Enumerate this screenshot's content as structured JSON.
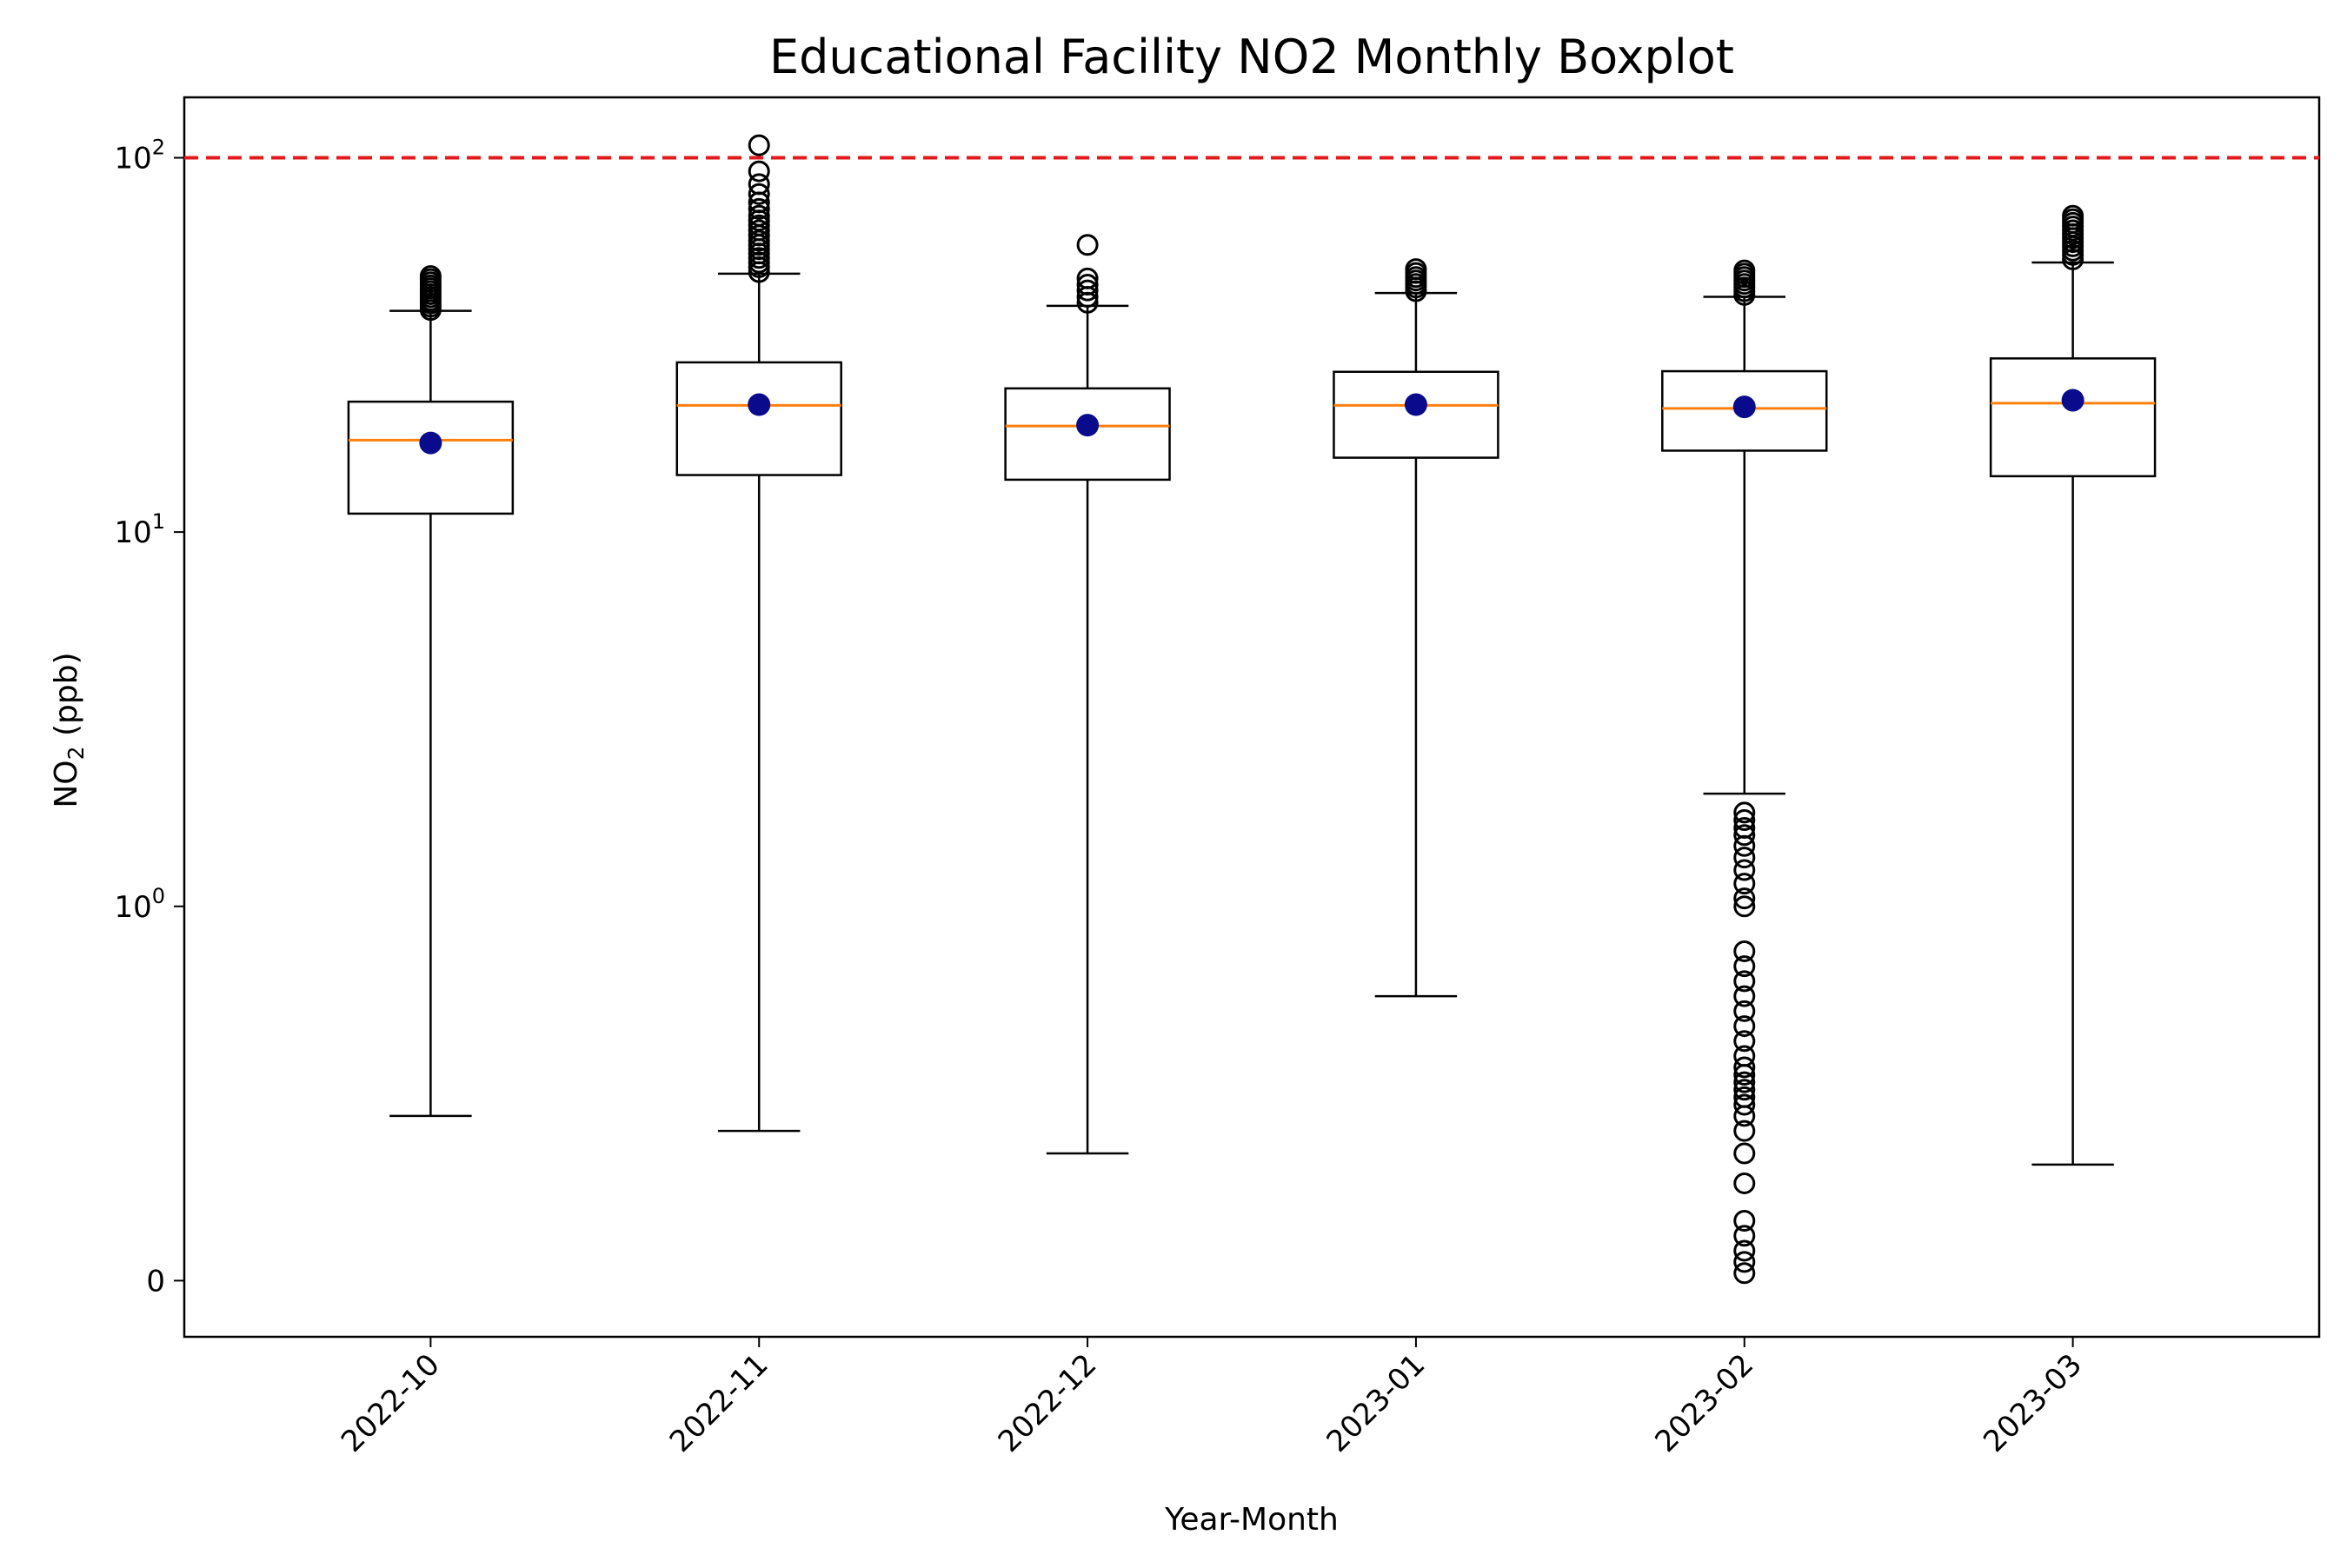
{
  "chart_data": {
    "type": "boxplot",
    "title": "Educational Facility NO2 Monthly Boxplot",
    "xlabel": "Year-Month",
    "ylabel": {
      "main": "NO",
      "sub": "2",
      "unit": " (ppb)"
    },
    "y_scale": "symlog",
    "ylim": [
      -0.15,
      145
    ],
    "y_ticks": [
      {
        "value": 0,
        "base": "0",
        "exp": ""
      },
      {
        "value": 1,
        "base": "10",
        "exp": "0"
      },
      {
        "value": 10,
        "base": "10",
        "exp": "1"
      },
      {
        "value": 100,
        "base": "10",
        "exp": "2"
      }
    ],
    "reference_line": {
      "value": 100,
      "color": "#e31a1c",
      "style": "dashed"
    },
    "colors": {
      "box": "#000000",
      "median": "#ff7f0e",
      "mean": "#0a0a8c",
      "flier": "#000000"
    },
    "categories": [
      "2022-10",
      "2022-11",
      "2022-12",
      "2023-01",
      "2023-02",
      "2023-03"
    ],
    "boxes": [
      {
        "category": "2022-10",
        "whisker_low": 0.44,
        "q1": 11.2,
        "median": 17.6,
        "q3": 22.3,
        "whisker_high": 39.0,
        "mean": 17.3,
        "fliers": [
          39.2,
          40.0,
          40.8,
          41.6,
          42.4,
          43.2,
          44.0,
          44.8,
          45.6,
          46.5,
          47.4,
          48.3
        ]
      },
      {
        "category": "2022-11",
        "whisker_low": 0.4,
        "q1": 14.2,
        "median": 21.8,
        "q3": 28.4,
        "whisker_high": 49.0,
        "mean": 21.9,
        "fliers": [
          49.5,
          51,
          52.5,
          54,
          55.5,
          57,
          58.5,
          60,
          62,
          64,
          66,
          68,
          70,
          73,
          76,
          80,
          85,
          92,
          108
        ]
      },
      {
        "category": "2022-12",
        "whisker_low": 0.34,
        "q1": 13.8,
        "median": 19.2,
        "q3": 24.2,
        "whisker_high": 40.2,
        "mean": 19.3,
        "fliers": [
          41.0,
          42.5,
          44.2,
          45.8,
          47.6,
          58.5
        ]
      },
      {
        "category": "2023-01",
        "whisker_low": 0.76,
        "q1": 15.8,
        "median": 21.8,
        "q3": 26.8,
        "whisker_high": 43.5,
        "mean": 21.9,
        "fliers": [
          44.0,
          45.0,
          46.0,
          47.0,
          48.0,
          49.2,
          50.4
        ]
      },
      {
        "category": "2023-02",
        "whisker_low": 2.0,
        "q1": 16.5,
        "median": 21.4,
        "q3": 26.9,
        "whisker_high": 42.5,
        "mean": 21.6,
        "fliers": [
          0.02,
          0.05,
          0.08,
          0.12,
          0.16,
          0.26,
          0.34,
          0.4,
          0.44,
          0.47,
          0.49,
          0.51,
          0.53,
          0.55,
          0.57,
          0.6,
          0.64,
          0.68,
          0.72,
          0.76,
          0.8,
          0.84,
          0.88,
          1.0,
          1.05,
          1.15,
          1.25,
          1.35,
          1.45,
          1.55,
          1.62,
          1.7,
          1.78,
          43.0,
          44.0,
          45.0,
          46.0,
          47.0,
          48.0,
          49.0,
          50.0
        ]
      },
      {
        "category": "2023-03",
        "whisker_low": 0.31,
        "q1": 14.1,
        "median": 22.1,
        "q3": 29.1,
        "whisker_high": 52.5,
        "mean": 22.5,
        "fliers": [
          53.5,
          55,
          56.5,
          58,
          59.5,
          61,
          62.5,
          64,
          65.5,
          67,
          68.5,
          70
        ]
      }
    ]
  }
}
